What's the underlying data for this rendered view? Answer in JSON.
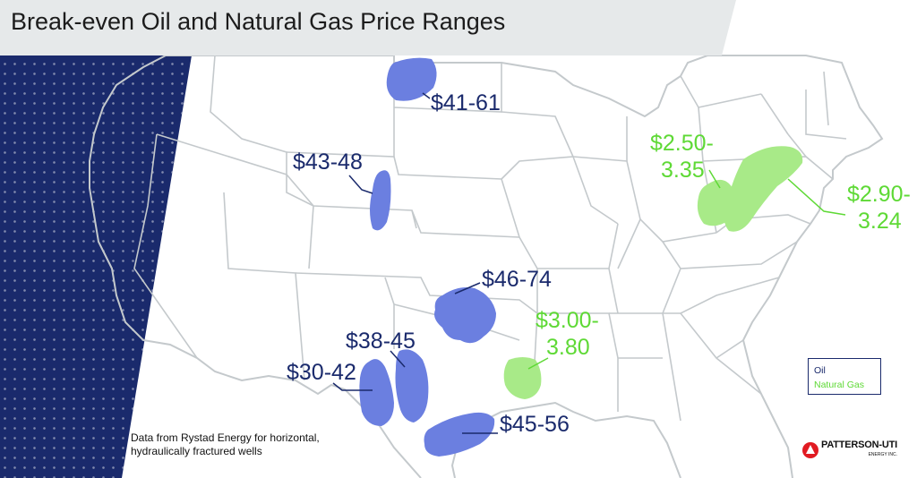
{
  "title": "Break-even Oil and Natural Gas Price Ranges",
  "colors": {
    "oil": "#1a2a6c",
    "oil_region": "#6b7fe0",
    "gas": "#5ed935",
    "gas_region": "#a8ea88",
    "state_lines": "#c4c9cc",
    "panel": "#1a2a6c",
    "title_band": "#e6e9ea"
  },
  "regions": [
    {
      "id": "bakken",
      "type": "oil",
      "label": "$41-61"
    },
    {
      "id": "powder-river",
      "type": "oil",
      "label": "$43-48"
    },
    {
      "id": "scoop-stack",
      "type": "oil",
      "label": "$46-74"
    },
    {
      "id": "midland",
      "type": "oil",
      "label": "$38-45"
    },
    {
      "id": "delaware",
      "type": "oil",
      "label": "$30-42"
    },
    {
      "id": "eagle-ford",
      "type": "oil",
      "label": "$45-56"
    },
    {
      "id": "haynesville",
      "type": "gas",
      "label_line1": "$3.00-",
      "label_line2": "3.80"
    },
    {
      "id": "utica",
      "type": "gas",
      "label_line1": "$2.50-",
      "label_line2": "3.35"
    },
    {
      "id": "marcellus",
      "type": "gas",
      "label_line1": "$2.90-",
      "label_line2": "3.24"
    }
  ],
  "legend": {
    "oil": "Oil",
    "gas": "Natural Gas"
  },
  "source_note": {
    "line1": "Data from Rystad Energy for horizontal,",
    "line2": "hydraulically fractured wells"
  },
  "logo": {
    "name": "PATTERSON-UTI",
    "sub": "ENERGY INC."
  }
}
